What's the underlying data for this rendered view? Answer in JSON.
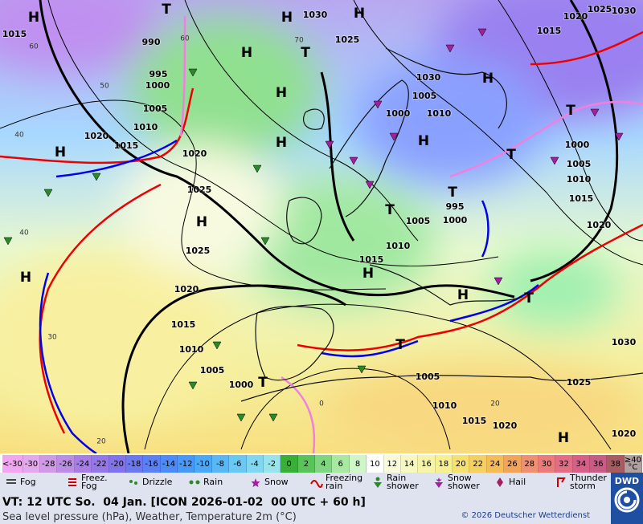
{
  "map": {
    "pressure_labels": [
      "1015",
      "1030",
      "1025",
      "990",
      "995",
      "1000",
      "1005",
      "1010",
      "1020",
      "1015",
      "1020",
      "1025",
      "1025",
      "1020",
      "1015",
      "1010",
      "1005",
      "1000",
      "1030",
      "1005",
      "1000",
      "1010",
      "995",
      "1005",
      "1000",
      "1010",
      "1015",
      "1020",
      "1025",
      "1030",
      "1015",
      "1000",
      "1005",
      "1010",
      "1015",
      "1020",
      "1030",
      "1025",
      "1005",
      "1010",
      "1015",
      "1020",
      "1020"
    ],
    "temperature_labels": [
      "60",
      "50",
      "40",
      "40",
      "30",
      "20",
      "70",
      "60",
      "20",
      "0"
    ],
    "pressure_centers": [
      "H",
      "H",
      "H",
      "H",
      "H",
      "H",
      "H",
      "H",
      "H",
      "H",
      "H",
      "H",
      "H",
      "H",
      "T",
      "T",
      "T",
      "T",
      "T",
      "T",
      "T",
      "T",
      "T"
    ]
  },
  "legend": {
    "temperature_scale": [
      "<-30",
      -30,
      -28,
      -26,
      -24,
      -22,
      -20,
      -18,
      -16,
      -14,
      -12,
      -10,
      -8,
      -6,
      -4,
      -2,
      0,
      2,
      4,
      6,
      8,
      10,
      12,
      14,
      16,
      18,
      20,
      22,
      24,
      26,
      28,
      30,
      32,
      34,
      36,
      38,
      "≥40 °C"
    ],
    "weather": [
      "Fog",
      "Freez.\nFog",
      "Drizzle",
      "Rain",
      "Snow",
      "Freezing\nrain",
      "Rain\nshower",
      "Snow\nshower",
      "Hail",
      "Thunder\nstorm"
    ]
  },
  "footer": {
    "valid_time": "VT: 12 UTC So.  04 Jan. [ICON 2026-01-02  00 UTC + 60 h]",
    "description": "Sea level pressure (hPa), Weather, Temperature 2m (°C)",
    "copyright": "© 2026 Deutscher Wetterdienst",
    "logo": "DWD"
  }
}
